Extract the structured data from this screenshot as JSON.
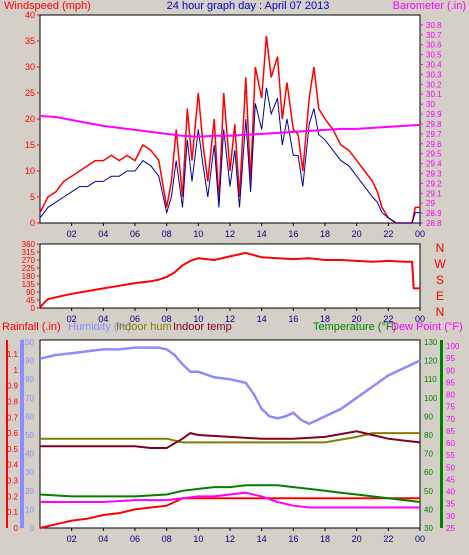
{
  "header": {
    "left_label": "Windspeed (mph)",
    "title": "24 hour graph day : April 07 2013",
    "right_label": "Barometer (.in)"
  },
  "colors": {
    "wind": "#ff0000",
    "wind_avg": "#0000a0",
    "barometer": "#ff00ff",
    "direction": "#ff0000",
    "rain": "#ff0000",
    "humidity": "#8c8cff",
    "indoor_hum": "#808000",
    "indoor_temp": "#800020",
    "temperature": "#008000",
    "dew_point": "#ff00ff",
    "axis_left_top": "#ff0000",
    "axis_right_top": "#ff00ff",
    "axis_rain": "#ff0000",
    "axis_hum": "#8c8cff",
    "axis_temp": "#008000",
    "axis_dew": "#ff00ff",
    "plot_bg": "#ffffff",
    "page_bg": "#d4d0c8"
  },
  "x_ticks": [
    "02",
    "04",
    "06",
    "08",
    "10",
    "12",
    "14",
    "16",
    "18",
    "20",
    "22",
    "00"
  ],
  "compass_labels": [
    "N",
    "W",
    "S",
    "E",
    "N"
  ],
  "chart_data": [
    {
      "type": "line",
      "name_ref": "wind",
      "xlabel": "",
      "xlim": [
        0,
        24
      ],
      "ylim": [
        0,
        40
      ],
      "y_ticks": [
        "0",
        "5",
        "10",
        "15",
        "20",
        "25",
        "30",
        "35",
        "40"
      ],
      "y2lim": [
        28.8,
        30.9
      ],
      "y2_ticks": [
        "28.8",
        "28.9",
        "29",
        "29.1",
        "29.2",
        "29.3",
        "29.4",
        "29.5",
        "29.6",
        "29.7",
        "29.8",
        "29.9",
        "30",
        "30.1",
        "30.2",
        "30.3",
        "30.4",
        "30.5",
        "30.6",
        "30.7",
        "30.8"
      ],
      "series": [
        {
          "name": "Windspeed (mph)",
          "color_ref": "wind",
          "axis": "left",
          "x": [
            0.0,
            0.5,
            1.0,
            1.5,
            2.0,
            2.5,
            3.0,
            3.5,
            4.0,
            4.5,
            5.0,
            5.5,
            6.0,
            6.5,
            7.0,
            7.5,
            8.0,
            8.3,
            8.6,
            9.0,
            9.3,
            9.6,
            10.0,
            10.3,
            10.6,
            11.0,
            11.3,
            11.6,
            12.0,
            12.3,
            12.6,
            13.0,
            13.3,
            13.6,
            14.0,
            14.3,
            14.6,
            15.0,
            15.3,
            15.6,
            16.0,
            16.3,
            16.6,
            17.0,
            17.3,
            17.6,
            18.0,
            18.5,
            19.0,
            19.5,
            20.0,
            20.5,
            21.0,
            21.3,
            21.6,
            22.0,
            22.5,
            23.0,
            23.5,
            23.7,
            24.0
          ],
          "values": [
            2,
            5,
            6,
            8,
            9,
            10,
            11,
            12,
            12,
            13,
            12,
            13,
            12,
            15,
            14,
            12,
            3,
            8,
            18,
            5,
            22,
            12,
            25,
            15,
            8,
            20,
            4,
            25,
            10,
            19,
            5,
            28,
            8,
            30,
            24,
            36,
            28,
            32,
            20,
            27,
            18,
            17,
            10,
            24,
            30,
            22,
            20,
            18,
            15,
            14,
            12,
            10,
            8,
            6,
            3,
            1,
            0,
            0,
            0,
            3,
            3
          ]
        },
        {
          "name": "Average wind",
          "color_ref": "wind_avg",
          "axis": "left",
          "x": [
            0.0,
            0.5,
            1.0,
            1.5,
            2.0,
            2.5,
            3.0,
            3.5,
            4.0,
            4.5,
            5.0,
            5.5,
            6.0,
            6.5,
            7.0,
            7.5,
            8.0,
            8.3,
            8.6,
            9.0,
            9.3,
            9.6,
            10.0,
            10.3,
            10.6,
            11.0,
            11.3,
            11.6,
            12.0,
            12.3,
            12.6,
            13.0,
            13.3,
            13.6,
            14.0,
            14.3,
            14.6,
            15.0,
            15.3,
            15.6,
            16.0,
            16.3,
            16.6,
            17.0,
            17.3,
            17.6,
            18.0,
            18.5,
            19.0,
            19.5,
            20.0,
            20.5,
            21.0,
            21.3,
            21.6,
            22.0,
            22.5,
            23.0,
            23.5,
            23.7,
            24.0
          ],
          "values": [
            1,
            3,
            4,
            5,
            6,
            7,
            7,
            8,
            8,
            9,
            9,
            10,
            10,
            12,
            11,
            9,
            2,
            5,
            12,
            3,
            16,
            8,
            18,
            11,
            5,
            15,
            3,
            18,
            7,
            14,
            3,
            20,
            6,
            23,
            18,
            26,
            21,
            24,
            15,
            20,
            13,
            13,
            7,
            19,
            22,
            17,
            16,
            14,
            12,
            11,
            9,
            7,
            5,
            4,
            2,
            1,
            0,
            0,
            0,
            2,
            2
          ]
        },
        {
          "name": "Barometer (.in)",
          "color_ref": "barometer",
          "axis": "right",
          "x": [
            0,
            1,
            2,
            3,
            4,
            5,
            6,
            7,
            8,
            9,
            10,
            11,
            12,
            13,
            14,
            15,
            16,
            17,
            18,
            19,
            20,
            21,
            22,
            23,
            24
          ],
          "values": [
            29.88,
            29.87,
            29.84,
            29.81,
            29.78,
            29.76,
            29.74,
            29.72,
            29.7,
            29.68,
            29.67,
            29.68,
            29.68,
            29.69,
            29.7,
            29.71,
            29.72,
            29.73,
            29.74,
            29.75,
            29.75,
            29.76,
            29.77,
            29.78,
            29.79
          ]
        }
      ]
    },
    {
      "type": "line",
      "name_ref": "wind_direction",
      "xlim": [
        0,
        24
      ],
      "ylim": [
        0,
        360
      ],
      "y_ticks": [
        "0",
        "45",
        "90",
        "135",
        "180",
        "225",
        "270",
        "315",
        "360"
      ],
      "series": [
        {
          "name": "Wind direction",
          "color_ref": "direction",
          "x": [
            0,
            0.5,
            1,
            2,
            3,
            4,
            5,
            6,
            7,
            7.5,
            8,
            8.5,
            9,
            9.5,
            10,
            11,
            12,
            13,
            14,
            15,
            16,
            17,
            18,
            19,
            20,
            21,
            22,
            23,
            23.5,
            23.6,
            24
          ],
          "values": [
            5,
            50,
            60,
            80,
            95,
            110,
            125,
            140,
            150,
            160,
            175,
            200,
            240,
            265,
            280,
            270,
            290,
            310,
            285,
            280,
            275,
            280,
            270,
            270,
            265,
            260,
            265,
            260,
            260,
            110,
            110
          ]
        }
      ]
    },
    {
      "type": "line",
      "name_ref": "rain_humidity_temperature",
      "xlim": [
        0,
        24
      ],
      "y_rain_ticks": [
        "0",
        "0.1",
        "0.2",
        "0.3",
        "0.4",
        "0.5",
        "0.6",
        "0.7",
        "0.8",
        "0.9",
        "1",
        "1.1"
      ],
      "y_hum_ticks": [
        "0",
        "10",
        "20",
        "30",
        "40",
        "50",
        "60",
        "70",
        "80",
        "90",
        "100"
      ],
      "y_temp_ticks": [
        "30",
        "40",
        "50",
        "60",
        "70",
        "80",
        "90",
        "100",
        "110",
        "120",
        "130"
      ],
      "y_dew_ticks": [
        "25",
        "30",
        "35",
        "40",
        "45",
        "50",
        "55",
        "60",
        "65",
        "70",
        "75",
        "80",
        "85",
        "90",
        "95",
        "100"
      ],
      "legend": {
        "rainfall": "Rainfall (.in)",
        "humidity": "Humidity (%)",
        "indoor_hum": "Indoor hum",
        "indoor_temp": "Indoor temp",
        "temperature": "Temperature (°F)",
        "dew_point": "Dew Point (°F)"
      },
      "series": [
        {
          "name": "Rainfall (.in)",
          "color_ref": "rain",
          "axis": "hum",
          "x": [
            0,
            1,
            2,
            3,
            4,
            5,
            6,
            7,
            8,
            8.5,
            9,
            10,
            12,
            14,
            16,
            18,
            20,
            22,
            24
          ],
          "values": [
            0,
            2,
            4,
            5,
            7,
            8,
            10,
            11,
            12,
            14,
            16,
            16,
            16,
            16,
            16,
            16,
            16,
            16,
            16
          ]
        },
        {
          "name": "Humidity (%)",
          "color_ref": "humidity",
          "axis": "hum",
          "x": [
            0,
            1,
            2,
            3,
            4,
            5,
            6,
            7,
            7.5,
            8,
            8.5,
            9,
            9.5,
            10,
            11,
            12,
            13,
            13.5,
            14,
            14.5,
            15,
            15.5,
            16,
            16.5,
            17,
            17.5,
            18,
            19,
            20,
            21,
            22,
            23,
            24
          ],
          "values": [
            91,
            93,
            94,
            95,
            96,
            96,
            97,
            97,
            97,
            96,
            93,
            88,
            84,
            84,
            81,
            80,
            78,
            72,
            64,
            60,
            59,
            60,
            62,
            58,
            56,
            58,
            60,
            64,
            70,
            76,
            82,
            86,
            90
          ]
        },
        {
          "name": "Indoor hum",
          "color_ref": "indoor_hum",
          "axis": "hum",
          "x": [
            0,
            2,
            4,
            6,
            8,
            9,
            10,
            12,
            14,
            16,
            18,
            20,
            21,
            22,
            24
          ],
          "values": [
            48,
            48,
            48,
            48,
            48,
            46,
            46,
            46,
            46,
            46,
            46,
            49,
            51,
            51,
            51
          ]
        },
        {
          "name": "Indoor temp",
          "color_ref": "indoor_temp",
          "axis": "temp",
          "x": [
            0,
            2,
            4,
            6,
            7,
            8,
            9,
            9.5,
            10,
            12,
            14,
            16,
            18,
            20,
            21,
            22,
            23,
            24
          ],
          "values": [
            74,
            74,
            74,
            74,
            73,
            73,
            78,
            81,
            80,
            79,
            78,
            78,
            79,
            82,
            80,
            78,
            77,
            76
          ]
        },
        {
          "name": "Temperature (°F)",
          "color_ref": "temperature",
          "axis": "temp",
          "x": [
            0,
            2,
            4,
            6,
            8,
            9,
            10,
            11,
            12,
            13,
            14,
            15,
            16,
            17,
            18,
            19,
            20,
            21,
            22,
            23,
            24
          ],
          "values": [
            48,
            47,
            47,
            47,
            48,
            50,
            51,
            52,
            52,
            53,
            53,
            53,
            52,
            51,
            50,
            49,
            48,
            47,
            46,
            45,
            44
          ]
        },
        {
          "name": "Dew Point (°F)",
          "color_ref": "dew_point",
          "axis": "temp",
          "x": [
            0,
            2,
            4,
            6,
            8,
            9,
            10,
            11,
            12,
            13,
            14,
            15,
            16,
            17,
            18,
            19,
            20,
            21,
            22,
            23,
            24
          ],
          "values": [
            44,
            44,
            44,
            45,
            45,
            46,
            47,
            47,
            48,
            49,
            47,
            44,
            42,
            41,
            41,
            41,
            41,
            41,
            41,
            41,
            41
          ]
        }
      ]
    }
  ]
}
